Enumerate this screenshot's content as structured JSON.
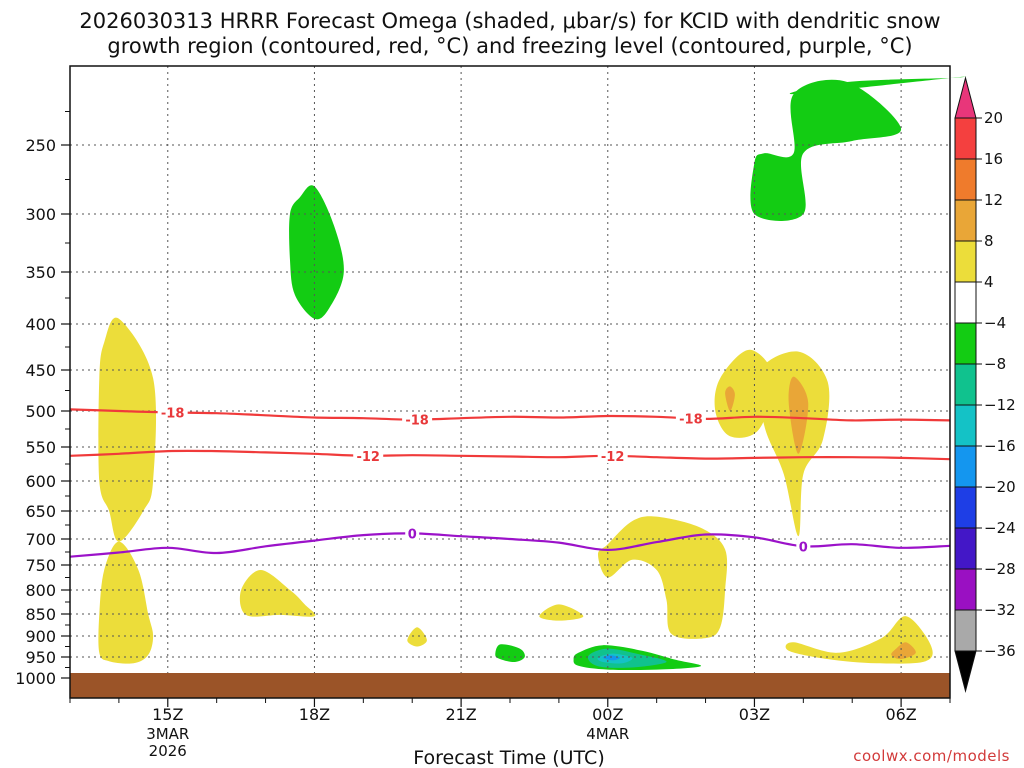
{
  "chart_data": {
    "type": "time-height cross-section",
    "title_line1": "2026030313 HRRR Forecast Omega (shaded, μbar/s) for KCID with dendritic snow",
    "title_line2": "growth region (contoured, red, °C) and freezing level (contoured, purple, °C)",
    "xlabel": "Forecast Time (UTC)",
    "credit": "coolwx.com/models",
    "x_hour_range": [
      13.0,
      31.0
    ],
    "y_levels_hpa": [
      250,
      300,
      350,
      400,
      450,
      500,
      550,
      600,
      650,
      700,
      750,
      800,
      850,
      900,
      950,
      1000
    ],
    "x_ticks": [
      {
        "hour": 15,
        "label": "15Z",
        "sub1": "3MAR",
        "sub2": "2026"
      },
      {
        "hour": 18,
        "label": "18Z",
        "sub1": "",
        "sub2": ""
      },
      {
        "hour": 21,
        "label": "21Z",
        "sub1": "",
        "sub2": ""
      },
      {
        "hour": 24,
        "label": "00Z",
        "sub1": "4MAR",
        "sub2": ""
      },
      {
        "hour": 27,
        "label": "03Z",
        "sub1": "",
        "sub2": ""
      },
      {
        "hour": 30,
        "label": "06Z",
        "sub1": "",
        "sub2": ""
      }
    ],
    "colorbar": {
      "levels": [
        20,
        16,
        12,
        8,
        4,
        -4,
        -8,
        -12,
        -16,
        -20,
        -24,
        -28,
        -32,
        -36
      ],
      "colors": [
        "#e8367a",
        "#f4403f",
        "#ef7b2c",
        "#e9a637",
        "#ecdd3a",
        "#ffffff",
        "#13cc13",
        "#10c28e",
        "#14c2c6",
        "#1496ef",
        "#1e3ee6",
        "#4317c7",
        "#9a10c2",
        "#a9a9a9",
        "#000000"
      ]
    },
    "contours": [
      {
        "name": "isotherm -18C",
        "value": -18,
        "color": "#f03a3a",
        "labels": [
          {
            "text": "-18",
            "hour": 15.1
          },
          {
            "text": "-18",
            "hour": 20.1
          },
          {
            "text": "-18",
            "hour": 25.7
          }
        ],
        "points": [
          [
            13.0,
            498
          ],
          [
            14.0,
            500
          ],
          [
            15.0,
            502
          ],
          [
            16.0,
            503
          ],
          [
            17.0,
            506
          ],
          [
            18.0,
            509
          ],
          [
            19.0,
            510
          ],
          [
            20.0,
            512
          ],
          [
            21.0,
            510
          ],
          [
            22.0,
            508
          ],
          [
            23.0,
            509
          ],
          [
            24.0,
            507
          ],
          [
            25.0,
            508
          ],
          [
            26.0,
            511
          ],
          [
            27.0,
            508
          ],
          [
            28.0,
            510
          ],
          [
            29.0,
            513
          ],
          [
            30.0,
            512
          ],
          [
            31.0,
            513
          ]
        ]
      },
      {
        "name": "isotherm -12C",
        "value": -12,
        "color": "#f03a3a",
        "labels": [
          {
            "text": "-12",
            "hour": 19.1
          },
          {
            "text": "-12",
            "hour": 24.1
          }
        ],
        "points": [
          [
            13.0,
            563
          ],
          [
            14.0,
            560
          ],
          [
            15.0,
            556
          ],
          [
            16.0,
            556
          ],
          [
            17.0,
            558
          ],
          [
            18.0,
            560
          ],
          [
            19.0,
            563
          ],
          [
            20.0,
            562
          ],
          [
            21.0,
            563
          ],
          [
            22.0,
            564
          ],
          [
            23.0,
            565
          ],
          [
            24.0,
            563
          ],
          [
            25.0,
            565
          ],
          [
            26.0,
            567
          ],
          [
            27.0,
            566
          ],
          [
            28.0,
            565
          ],
          [
            29.0,
            565
          ],
          [
            30.0,
            566
          ],
          [
            31.0,
            568
          ]
        ]
      },
      {
        "name": "freezing level 0C",
        "value": 0,
        "color": "#9b12c9",
        "labels": [
          {
            "text": "0",
            "hour": 20.0
          },
          {
            "text": "0",
            "hour": 28.0
          }
        ],
        "points": [
          [
            13.0,
            734
          ],
          [
            14.0,
            726
          ],
          [
            15.0,
            717
          ],
          [
            16.0,
            727
          ],
          [
            17.0,
            714
          ],
          [
            18.0,
            703
          ],
          [
            19.0,
            693
          ],
          [
            20.0,
            690
          ],
          [
            21.0,
            695
          ],
          [
            22.0,
            700
          ],
          [
            23.0,
            707
          ],
          [
            24.0,
            721
          ],
          [
            25.0,
            706
          ],
          [
            26.0,
            692
          ],
          [
            27.0,
            697
          ],
          [
            28.0,
            714
          ],
          [
            29.0,
            710
          ],
          [
            30.0,
            717
          ],
          [
            31.0,
            713
          ]
        ]
      }
    ],
    "shaded_regions": [
      {
        "name": "upward-omega-core-upper",
        "color": "#13cc13",
        "points": [
          [
            27.8,
            212
          ],
          [
            28.9,
            203
          ],
          [
            31.0,
            200
          ],
          [
            31.0,
            200
          ]
        ]
      },
      {
        "name": "green-upper-right",
        "color": "#13cc13",
        "points": [
          [
            27.0,
            263
          ],
          [
            27.0,
            300
          ],
          [
            28.0,
            300
          ],
          [
            28.0,
            256
          ],
          [
            29.0,
            247
          ],
          [
            30.0,
            238
          ],
          [
            28.9,
            203
          ],
          [
            27.8,
            212
          ],
          [
            27.8,
            256
          ],
          [
            27.2,
            256
          ]
        ]
      },
      {
        "name": "green-300-400",
        "color": "#13cc13",
        "points": [
          [
            18.0,
            280
          ],
          [
            18.4,
            310
          ],
          [
            18.6,
            350
          ],
          [
            18.3,
            385
          ],
          [
            18.0,
            395
          ],
          [
            17.6,
            372
          ],
          [
            17.5,
            340
          ],
          [
            17.5,
            300
          ],
          [
            17.7,
            288
          ]
        ]
      },
      {
        "name": "green-950",
        "color": "#13cc13",
        "points": [
          [
            21.8,
            920
          ],
          [
            22.2,
            930
          ],
          [
            22.3,
            950
          ],
          [
            22.1,
            962
          ],
          [
            21.8,
            955
          ],
          [
            21.7,
            945
          ]
        ]
      },
      {
        "name": "green-lowlevel-downward",
        "color": "#13cc13",
        "points": [
          [
            23.4,
            940
          ],
          [
            23.9,
            922
          ],
          [
            24.7,
            935
          ],
          [
            25.4,
            957
          ],
          [
            25.9,
            972
          ],
          [
            25.0,
            980
          ],
          [
            24.0,
            980
          ],
          [
            23.4,
            971
          ],
          [
            23.3,
            955
          ]
        ]
      },
      {
        "name": "teal-core",
        "color": "#10c28e",
        "points": [
          [
            23.6,
            948
          ],
          [
            24.0,
            930
          ],
          [
            24.7,
            945
          ],
          [
            25.2,
            962
          ],
          [
            24.5,
            975
          ],
          [
            23.8,
            972
          ]
        ]
      },
      {
        "name": "cyan-core",
        "color": "#14c2c6",
        "points": [
          [
            23.8,
            952
          ],
          [
            24.1,
            942
          ],
          [
            24.5,
            952
          ],
          [
            24.3,
            965
          ],
          [
            23.9,
            962
          ]
        ]
      },
      {
        "name": "blue-core",
        "color": "#1496ef",
        "points": [
          [
            23.9,
            952
          ],
          [
            24.05,
            946
          ],
          [
            24.25,
            952
          ],
          [
            24.1,
            958
          ]
        ]
      },
      {
        "name": "yellow-column-left",
        "color": "#ecdd3a",
        "points": [
          [
            14.0,
            395
          ],
          [
            14.7,
            460
          ],
          [
            14.7,
            600
          ],
          [
            14.5,
            650
          ],
          [
            14.0,
            705
          ],
          [
            13.8,
            650
          ],
          [
            13.6,
            600
          ],
          [
            13.6,
            460
          ],
          [
            13.7,
            420
          ]
        ]
      },
      {
        "name": "yellow-lower-left",
        "color": "#ecdd3a",
        "points": [
          [
            14.0,
            705
          ],
          [
            14.4,
            760
          ],
          [
            14.6,
            850
          ],
          [
            14.7,
            900
          ],
          [
            14.6,
            945
          ],
          [
            14.3,
            965
          ],
          [
            13.8,
            960
          ],
          [
            13.6,
            940
          ],
          [
            13.6,
            850
          ],
          [
            13.7,
            760
          ]
        ]
      },
      {
        "name": "yellow-17z-800",
        "color": "#ecdd3a",
        "points": [
          [
            16.9,
            760
          ],
          [
            17.5,
            800
          ],
          [
            17.8,
            830
          ],
          [
            18.0,
            855
          ],
          [
            17.3,
            852
          ],
          [
            16.6,
            852
          ],
          [
            16.5,
            800
          ]
        ]
      },
      {
        "name": "yellow-20z-900",
        "color": "#ecdd3a",
        "points": [
          [
            20.1,
            880
          ],
          [
            20.3,
            910
          ],
          [
            20.1,
            925
          ],
          [
            19.9,
            910
          ]
        ]
      },
      {
        "name": "yellow-23z-850",
        "color": "#ecdd3a",
        "points": [
          [
            23.0,
            830
          ],
          [
            23.5,
            855
          ],
          [
            23.0,
            865
          ],
          [
            22.6,
            855
          ]
        ]
      },
      {
        "name": "yellow-00z-block",
        "color": "#ecdd3a",
        "points": [
          [
            24.0,
            710
          ],
          [
            24.5,
            668
          ],
          [
            25.0,
            660
          ],
          [
            25.9,
            680
          ],
          [
            26.4,
            720
          ],
          [
            26.4,
            800
          ],
          [
            26.3,
            880
          ],
          [
            26.0,
            905
          ],
          [
            25.3,
            895
          ],
          [
            25.2,
            820
          ],
          [
            25.0,
            760
          ],
          [
            24.5,
            740
          ],
          [
            24.0,
            775
          ],
          [
            23.8,
            730
          ]
        ]
      },
      {
        "name": "yellow-02z-upper",
        "color": "#ecdd3a",
        "points": [
          [
            26.3,
            460
          ],
          [
            26.9,
            428
          ],
          [
            27.4,
            460
          ],
          [
            27.1,
            525
          ],
          [
            26.5,
            535
          ],
          [
            26.2,
            500
          ]
        ]
      },
      {
        "name": "orange-02z",
        "color": "#e9a637",
        "points": [
          [
            26.4,
            478
          ],
          [
            26.5,
            470
          ],
          [
            26.6,
            480
          ],
          [
            26.5,
            500
          ]
        ]
      },
      {
        "name": "yellow-04z-upper",
        "color": "#ecdd3a",
        "points": [
          [
            27.1,
            452
          ],
          [
            27.9,
            430
          ],
          [
            28.5,
            465
          ],
          [
            28.4,
            540
          ],
          [
            28.0,
            590
          ],
          [
            27.9,
            695
          ],
          [
            27.6,
            590
          ],
          [
            27.2,
            520
          ]
        ]
      },
      {
        "name": "orange-04z",
        "color": "#e9a637",
        "points": [
          [
            27.8,
            458
          ],
          [
            28.1,
            490
          ],
          [
            27.9,
            560
          ],
          [
            27.7,
            490
          ]
        ]
      },
      {
        "name": "yellow-05z-950",
        "color": "#ecdd3a",
        "points": [
          [
            27.8,
            915
          ],
          [
            28.7,
            940
          ],
          [
            29.6,
            905
          ],
          [
            30.1,
            855
          ],
          [
            30.6,
            920
          ],
          [
            30.5,
            960
          ],
          [
            29.5,
            965
          ],
          [
            28.5,
            955
          ],
          [
            27.7,
            935
          ]
        ]
      },
      {
        "name": "orange-06z",
        "color": "#e9a637",
        "points": [
          [
            29.9,
            930
          ],
          [
            30.1,
            915
          ],
          [
            30.3,
            940
          ],
          [
            30.0,
            955
          ],
          [
            29.8,
            945
          ]
        ]
      }
    ],
    "ground_color": "#9b5428"
  }
}
